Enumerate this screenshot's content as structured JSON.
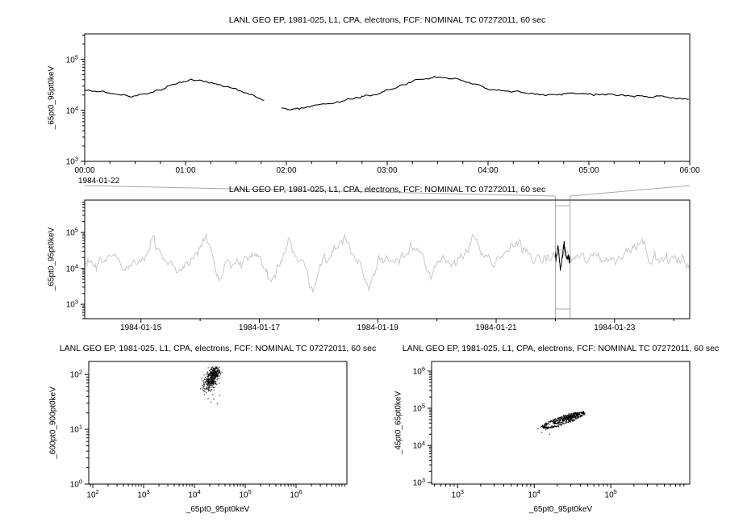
{
  "window": {
    "bg": "#ffffff",
    "axis_color": "#000000",
    "context_series_color": "#c8c8c8",
    "selection_color": "#a8a8a8"
  },
  "chart_data": [
    {
      "id": "zoom-timeseries",
      "type": "line",
      "title": "LANL GEO EP, 1981-025, L1, CPA, electrons, FCF: NOMINAL TC 07272011, 60 sec",
      "ylabel": "_65pt0_95pt0keV",
      "x_context_label": "1984-01-22",
      "x_unit": "hours UT on 1984-01-22",
      "x_range": [
        0,
        6
      ],
      "x_ticks": [
        {
          "hour": 0,
          "label": "00:00"
        },
        {
          "hour": 1,
          "label": "01:00"
        },
        {
          "hour": 2,
          "label": "02:00"
        },
        {
          "hour": 3,
          "label": "03:00"
        },
        {
          "hour": 4,
          "label": "04:00"
        },
        {
          "hour": 5,
          "label": "05:00"
        },
        {
          "hour": 6,
          "label": "06:00"
        }
      ],
      "y_axis": {
        "scale": "log",
        "range_exp": [
          3,
          5.5
        ],
        "tick_exps": [
          3,
          4,
          5
        ]
      },
      "line_color": "#000000",
      "noise_log10": 0.012,
      "segments_log10": [
        [
          [
            0.0,
            4.38
          ],
          [
            0.1,
            4.37
          ],
          [
            0.2,
            4.35
          ],
          [
            0.33,
            4.31
          ],
          [
            0.45,
            4.29
          ],
          [
            0.58,
            4.31
          ],
          [
            0.7,
            4.38
          ],
          [
            0.82,
            4.47
          ],
          [
            0.95,
            4.55
          ],
          [
            1.05,
            4.6
          ],
          [
            1.15,
            4.59
          ],
          [
            1.25,
            4.55
          ],
          [
            1.35,
            4.5
          ],
          [
            1.45,
            4.44
          ],
          [
            1.55,
            4.38
          ],
          [
            1.65,
            4.31
          ],
          [
            1.72,
            4.26
          ],
          [
            1.78,
            4.2
          ]
        ],
        [
          [
            1.95,
            4.03
          ],
          [
            2.05,
            4.01
          ],
          [
            2.15,
            4.05
          ],
          [
            2.28,
            4.09
          ],
          [
            2.42,
            4.14
          ],
          [
            2.55,
            4.19
          ],
          [
            2.68,
            4.24
          ],
          [
            2.82,
            4.3
          ],
          [
            2.95,
            4.36
          ],
          [
            3.08,
            4.44
          ],
          [
            3.18,
            4.52
          ],
          [
            3.28,
            4.6
          ],
          [
            3.38,
            4.62
          ],
          [
            3.48,
            4.65
          ],
          [
            3.58,
            4.64
          ],
          [
            3.68,
            4.61
          ],
          [
            3.78,
            4.55
          ],
          [
            3.88,
            4.49
          ],
          [
            4.0,
            4.43
          ],
          [
            4.12,
            4.39
          ],
          [
            4.25,
            4.36
          ],
          [
            4.4,
            4.33
          ],
          [
            4.55,
            4.32
          ],
          [
            4.7,
            4.32
          ],
          [
            4.85,
            4.33
          ],
          [
            5.0,
            4.32
          ],
          [
            5.15,
            4.31
          ],
          [
            5.3,
            4.3
          ],
          [
            5.45,
            4.29
          ],
          [
            5.6,
            4.28
          ],
          [
            5.75,
            4.26
          ],
          [
            5.9,
            4.24
          ],
          [
            6.0,
            4.23
          ]
        ]
      ]
    },
    {
      "id": "context-timeseries",
      "type": "line",
      "title": "LANL GEO EP, 1981-025, L1, CPA, electrons, FCF: NOMINAL TC 07272011, 60 sec",
      "ylabel": "_65pt0_95pt0keV",
      "x_range_days": [
        14.05,
        24.27
      ],
      "x_ticks": [
        {
          "day": 15,
          "label": "1984-01-15"
        },
        {
          "day": 17,
          "label": "1984-01-17"
        },
        {
          "day": 19,
          "label": "1984-01-19"
        },
        {
          "day": 21,
          "label": "1984-01-21"
        },
        {
          "day": 23,
          "label": "1984-01-23"
        }
      ],
      "y_axis": {
        "scale": "log",
        "range_exp": [
          2.6,
          5.9
        ],
        "tick_exps": [
          3,
          4,
          5
        ]
      },
      "line_color": "#c8c8c8",
      "noise_log10": 0.09,
      "selection": {
        "day_range": [
          22.0,
          22.25
        ],
        "box_color": "#a8a8a8",
        "highlight_color": "#000000"
      },
      "keypoints_log10": [
        [
          14.05,
          4.15
        ],
        [
          14.15,
          4.32
        ],
        [
          14.25,
          4.1
        ],
        [
          14.4,
          4.22
        ],
        [
          14.5,
          4.55
        ],
        [
          14.6,
          4.18
        ],
        [
          14.72,
          4.0
        ],
        [
          14.82,
          4.15
        ],
        [
          14.92,
          4.28
        ],
        [
          15.02,
          4.18
        ],
        [
          15.12,
          4.45
        ],
        [
          15.2,
          4.88
        ],
        [
          15.3,
          4.32
        ],
        [
          15.45,
          4.08
        ],
        [
          15.6,
          3.95
        ],
        [
          15.75,
          4.1
        ],
        [
          15.9,
          4.32
        ],
        [
          16.0,
          4.6
        ],
        [
          16.1,
          4.85
        ],
        [
          16.2,
          4.38
        ],
        [
          16.32,
          3.65
        ],
        [
          16.45,
          4.12
        ],
        [
          16.6,
          4.05
        ],
        [
          16.75,
          4.2
        ],
        [
          16.9,
          4.32
        ],
        [
          17.05,
          4.12
        ],
        [
          17.2,
          3.5
        ],
        [
          17.35,
          4.25
        ],
        [
          17.5,
          4.85
        ],
        [
          17.62,
          4.28
        ],
        [
          17.75,
          4.08
        ],
        [
          17.9,
          3.45
        ],
        [
          18.02,
          4.1
        ],
        [
          18.15,
          4.32
        ],
        [
          18.3,
          4.5
        ],
        [
          18.45,
          5.0
        ],
        [
          18.55,
          4.38
        ],
        [
          18.7,
          4.18
        ],
        [
          18.85,
          3.4
        ],
        [
          19.0,
          4.15
        ],
        [
          19.15,
          4.32
        ],
        [
          19.3,
          4.22
        ],
        [
          19.45,
          4.4
        ],
        [
          19.6,
          4.75
        ],
        [
          19.75,
          4.38
        ],
        [
          19.9,
          3.62
        ],
        [
          20.05,
          4.22
        ],
        [
          20.2,
          4.12
        ],
        [
          20.35,
          4.3
        ],
        [
          20.5,
          4.5
        ],
        [
          20.65,
          4.85
        ],
        [
          20.8,
          4.28
        ],
        [
          20.95,
          4.05
        ],
        [
          21.1,
          4.32
        ],
        [
          21.25,
          4.58
        ],
        [
          21.4,
          4.75
        ],
        [
          21.55,
          4.42
        ],
        [
          21.7,
          4.18
        ],
        [
          21.85,
          4.28
        ],
        [
          22.0,
          4.35
        ],
        [
          22.12,
          4.5
        ],
        [
          22.25,
          4.25
        ],
        [
          22.4,
          4.32
        ],
        [
          22.55,
          4.2
        ],
        [
          22.7,
          4.38
        ],
        [
          22.85,
          4.28
        ],
        [
          23.0,
          4.22
        ],
        [
          23.15,
          4.38
        ],
        [
          23.3,
          4.6
        ],
        [
          23.45,
          4.85
        ],
        [
          23.58,
          4.38
        ],
        [
          23.72,
          4.18
        ],
        [
          23.85,
          4.28
        ],
        [
          24.0,
          4.25
        ],
        [
          24.15,
          4.18
        ],
        [
          24.27,
          4.1
        ]
      ]
    },
    {
      "id": "scatter-600-900-vs-65-95",
      "type": "scatter",
      "title": "LANL GEO EP, 1981-025, L1, CPA, electrons, FCF: NOMINAL TC 07272011, 60 sec",
      "xlabel": "_65pt0_95pt0keV",
      "ylabel": "_600pt0_900pt0keV",
      "x_axis": {
        "scale": "log",
        "range_exp": [
          1.92,
          7.0
        ],
        "tick_exps": [
          2,
          3,
          4,
          5,
          6
        ]
      },
      "y_axis": {
        "scale": "log",
        "range_exp": [
          0,
          2.24
        ],
        "tick_exps": [
          0,
          1,
          2
        ]
      },
      "point_color": "#000000",
      "cluster": {
        "center_log10": [
          4.33,
          1.92
        ],
        "sigma_log10": [
          0.07,
          0.1
        ],
        "n": 330,
        "corr": 0.6,
        "y_cap": 2.14
      },
      "core": {
        "center_log10": [
          4.4,
          2.02
        ],
        "sigma_log10": [
          0.05,
          0.05
        ],
        "n": 150,
        "corr": 0.3,
        "y_cap": 2.14
      },
      "stray_points_log10": [
        [
          4.12,
          1.74
        ],
        [
          4.2,
          1.63
        ],
        [
          4.27,
          1.56
        ],
        [
          4.33,
          1.5
        ],
        [
          4.45,
          1.47
        ],
        [
          4.18,
          1.7
        ],
        [
          4.38,
          1.55
        ],
        [
          4.5,
          1.62
        ]
      ]
    },
    {
      "id": "scatter-45-65-vs-65-95",
      "type": "scatter",
      "title": "LANL GEO EP, 1981-025, L1, CPA, electrons, FCF: NOMINAL TC 07272011, 60 sec",
      "xlabel": "_65pt0_95pt0keV",
      "ylabel": "_45pt0_65pt0keV",
      "x_axis": {
        "scale": "log",
        "range_exp": [
          2.66,
          6.03
        ],
        "tick_exps": [
          3,
          4,
          5
        ]
      },
      "y_axis": {
        "scale": "log",
        "range_exp": [
          2.96,
          6.26
        ],
        "tick_exps": [
          3,
          4,
          5,
          6
        ]
      },
      "point_color": "#000000",
      "loop": {
        "center_log10": [
          4.38,
          4.68
        ],
        "a": 0.26,
        "b": 0.1,
        "slope": 0.7,
        "jitter": 0.025,
        "n": 300
      },
      "loop2": {
        "center_log10": [
          4.42,
          4.72
        ],
        "a": 0.16,
        "b": 0.06,
        "slope": 0.7,
        "jitter": 0.02,
        "n": 150
      },
      "core": {
        "center_log10": [
          4.44,
          4.74
        ],
        "sigma_log10": [
          0.06,
          0.025
        ],
        "n": 200,
        "corr": 0.6
      },
      "stray_points_log10": [
        [
          4.1,
          4.35
        ],
        [
          4.15,
          4.42
        ],
        [
          4.2,
          4.3
        ],
        [
          4.08,
          4.5
        ],
        [
          4.05,
          4.45
        ]
      ]
    }
  ]
}
